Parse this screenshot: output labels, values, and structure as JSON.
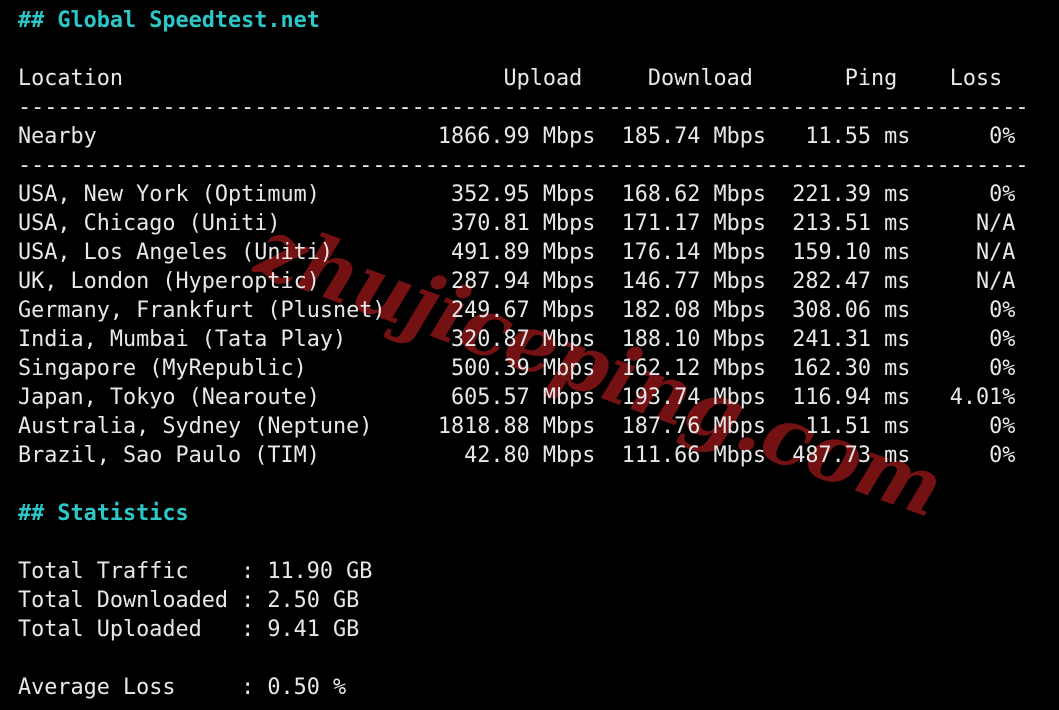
{
  "watermark": {
    "text": "zhujiceping.com",
    "color": "#7a1215"
  },
  "speedtest": {
    "heading": "## Global Speedtest.net",
    "columns": [
      "Location",
      "Upload",
      "Download",
      "Ping",
      "Loss"
    ],
    "divider": {
      "char": "-",
      "count": 77
    },
    "nearby": {
      "location": "Nearby",
      "upload": "1866.99 Mbps",
      "download": "185.74 Mbps",
      "ping": "11.55 ms",
      "loss": "0%"
    },
    "rows": [
      {
        "location": "USA, New York (Optimum)",
        "upload": "352.95 Mbps",
        "download": "168.62 Mbps",
        "ping": "221.39 ms",
        "loss": "0%"
      },
      {
        "location": "USA, Chicago (Uniti)",
        "upload": "370.81 Mbps",
        "download": "171.17 Mbps",
        "ping": "213.51 ms",
        "loss": "N/A"
      },
      {
        "location": "USA, Los Angeles (Uniti)",
        "upload": "491.89 Mbps",
        "download": "176.14 Mbps",
        "ping": "159.10 ms",
        "loss": "N/A"
      },
      {
        "location": "UK, London (Hyperoptic)",
        "upload": "287.94 Mbps",
        "download": "146.77 Mbps",
        "ping": "282.47 ms",
        "loss": "N/A"
      },
      {
        "location": "Germany, Frankfurt (Plusnet)",
        "upload": "249.67 Mbps",
        "download": "182.08 Mbps",
        "ping": "308.06 ms",
        "loss": "0%"
      },
      {
        "location": "India, Mumbai (Tata Play)",
        "upload": "320.87 Mbps",
        "download": "188.10 Mbps",
        "ping": "241.31 ms",
        "loss": "0%"
      },
      {
        "location": "Singapore (MyRepublic)",
        "upload": "500.39 Mbps",
        "download": "162.12 Mbps",
        "ping": "162.30 ms",
        "loss": "0%"
      },
      {
        "location": "Japan, Tokyo (Nearoute)",
        "upload": "605.57 Mbps",
        "download": "193.74 Mbps",
        "ping": "116.94 ms",
        "loss": "4.01%"
      },
      {
        "location": "Australia, Sydney (Neptune)",
        "upload": "1818.88 Mbps",
        "download": "187.76 Mbps",
        "ping": "11.51 ms",
        "loss": "0%"
      },
      {
        "location": "Brazil, Sao Paulo (TIM)",
        "upload": "42.80 Mbps",
        "download": "111.66 Mbps",
        "ping": "487.73 ms",
        "loss": "0%"
      }
    ]
  },
  "statistics": {
    "heading": "## Statistics",
    "totals": [
      {
        "label": "Total Traffic",
        "value": "11.90 GB"
      },
      {
        "label": "Total Downloaded",
        "value": "2.50 GB"
      },
      {
        "label": "Total Uploaded",
        "value": "9.41 GB"
      }
    ],
    "average": {
      "label": "Average Loss",
      "value": "0.50 %"
    }
  },
  "colors": {
    "background": "#000000",
    "text": "#e8e8e8",
    "heading": "#2cc7c7",
    "watermark": "#7a1215"
  }
}
